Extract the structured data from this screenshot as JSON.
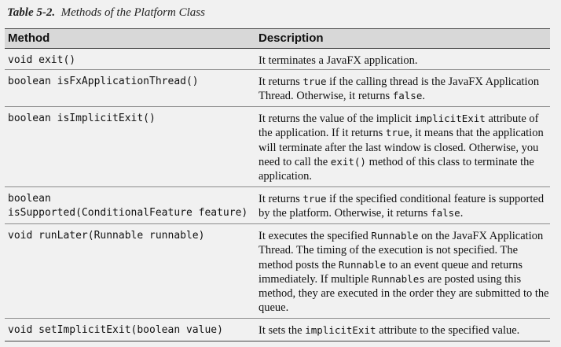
{
  "caption": {
    "label": "Table 5-2.",
    "title": "Methods of the Platform Class"
  },
  "headers": {
    "method": "Method",
    "description": "Description"
  },
  "rows": [
    {
      "method_line1": "void exit()",
      "method_line2": "",
      "description": [
        {
          "t": "It terminates a JavaFX application."
        }
      ]
    },
    {
      "method_line1": "boolean isFxApplicationThread()",
      "method_line2": "",
      "description": [
        {
          "t": "It returns "
        },
        {
          "c": "true"
        },
        {
          "t": " if the calling thread is the JavaFX Application Thread. Otherwise, it returns "
        },
        {
          "c": "false"
        },
        {
          "t": "."
        }
      ]
    },
    {
      "method_line1": "boolean isImplicitExit()",
      "method_line2": "",
      "description": [
        {
          "t": "It returns the value of the implicit "
        },
        {
          "c": "implicitExit"
        },
        {
          "t": " attribute of the application. If it returns "
        },
        {
          "c": "true"
        },
        {
          "t": ", it means that the application will terminate after the last window is closed. Otherwise, you need to call the "
        },
        {
          "c": "exit()"
        },
        {
          "t": " method of this class to terminate the application."
        }
      ]
    },
    {
      "method_line1": "boolean",
      "method_line2": "isSupported(ConditionalFeature feature)",
      "description": [
        {
          "t": "It returns "
        },
        {
          "c": "true"
        },
        {
          "t": " if the specified conditional feature is supported by the platform. Otherwise, it returns "
        },
        {
          "c": "false"
        },
        {
          "t": "."
        }
      ]
    },
    {
      "method_line1": "void runLater(Runnable runnable)",
      "method_line2": "",
      "description": [
        {
          "t": "It executes the specified "
        },
        {
          "c": "Runnable"
        },
        {
          "t": " on the JavaFX Application Thread. The timing of the execution is not specified. The method posts the "
        },
        {
          "c": "Runnable"
        },
        {
          "t": " to an event queue and returns immediately. If multiple "
        },
        {
          "c": "Runnables"
        },
        {
          "t": " are posted using this method, they are executed in the order they are submitted to the queue."
        }
      ]
    },
    {
      "method_line1": "void setImplicitExit(boolean value)",
      "method_line2": "",
      "description": [
        {
          "t": "It sets the "
        },
        {
          "c": "implicitExit"
        },
        {
          "t": " attribute to the specified value."
        }
      ]
    }
  ]
}
